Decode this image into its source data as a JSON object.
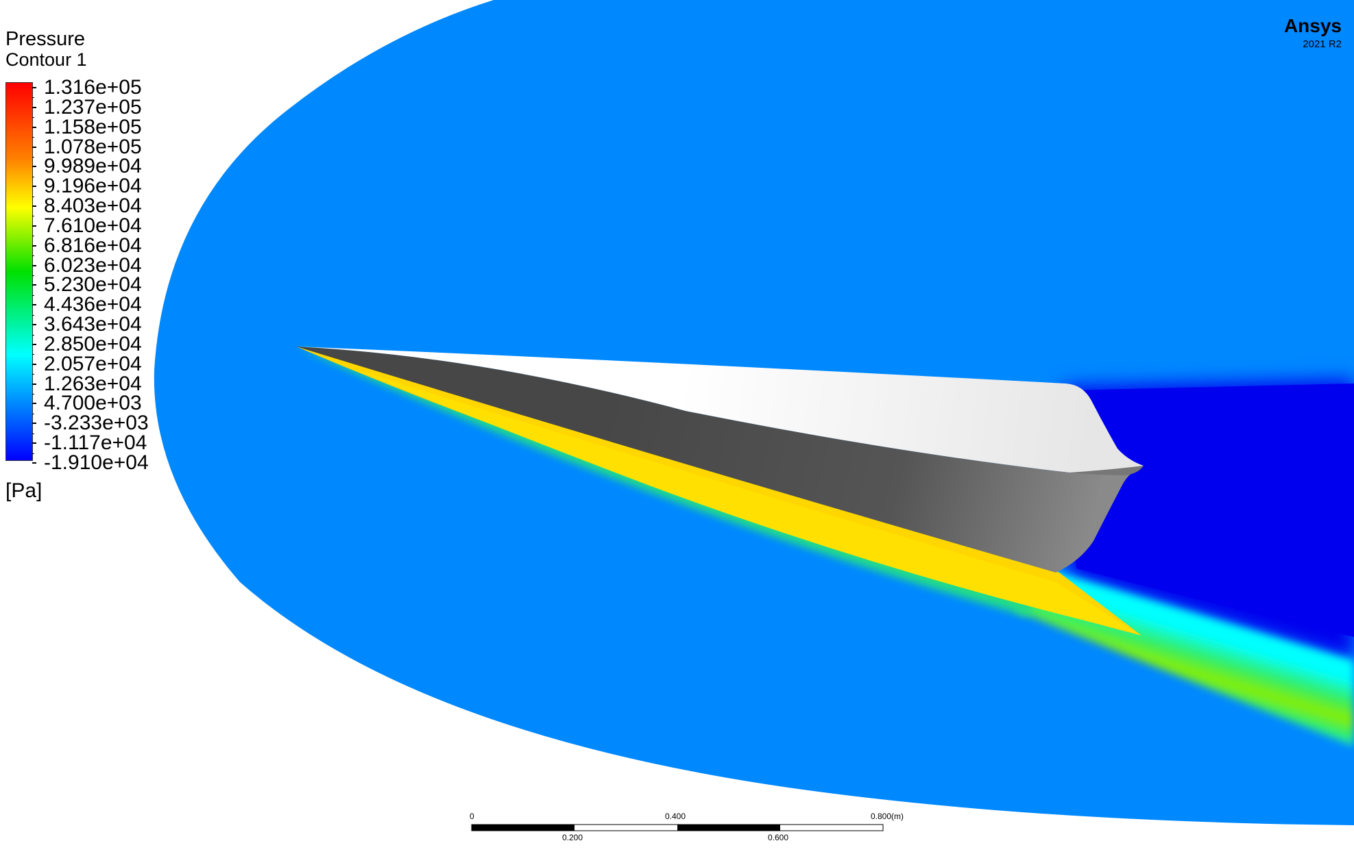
{
  "chart_data": {
    "type": "heatmap",
    "title": "Pressure",
    "subtitle": "Contour 1",
    "unit": "[Pa]",
    "legend_levels": [
      "1.316e+05",
      "1.237e+05",
      "1.158e+05",
      "1.078e+05",
      "9.989e+04",
      "9.196e+04",
      "8.403e+04",
      "7.610e+04",
      "6.816e+04",
      "6.023e+04",
      "5.230e+04",
      "4.436e+04",
      "3.643e+04",
      "2.850e+04",
      "2.057e+04",
      "1.263e+04",
      "4.700e+03",
      "-3.233e+03",
      "-1.117e+04",
      "-1.910e+04"
    ],
    "legend_range": [
      -19100,
      131600
    ],
    "colormap": [
      "#ff0000",
      "#ff8000",
      "#ffff00",
      "#00e000",
      "#00ffff",
      "#0000ff"
    ],
    "regions": [
      {
        "name": "freestream",
        "color": "#0088ff"
      },
      {
        "name": "lower shock layer",
        "color": "#ffd700"
      },
      {
        "name": "wake",
        "color": "#0000ee"
      }
    ],
    "scale_bar": {
      "unit": "(m)",
      "top_labels": [
        "0",
        "0.400",
        "0.800"
      ],
      "bottom_labels": [
        "0.200",
        "0.600"
      ]
    }
  },
  "branding": {
    "name": "Ansys",
    "version": "2021 R2"
  }
}
